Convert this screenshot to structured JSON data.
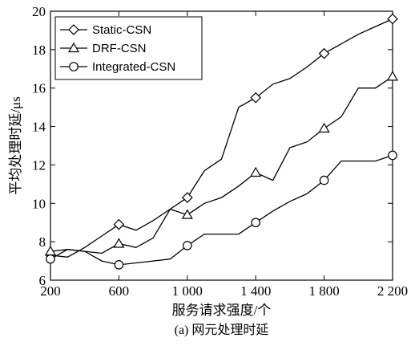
{
  "chart_data": {
    "type": "line",
    "title": "",
    "caption": "(a) 网元处理时延",
    "xlabel": "服务请求强度/个",
    "ylabel": "平均处理时延/μs",
    "xlim": [
      200,
      2200
    ],
    "ylim": [
      6,
      20
    ],
    "xticks": [
      200,
      600,
      1000,
      1400,
      1800,
      2200
    ],
    "xtick_labels": [
      "200",
      "600",
      "1 000",
      "1 400",
      "1 800",
      "2 200"
    ],
    "yticks": [
      6,
      8,
      10,
      12,
      14,
      16,
      18,
      20
    ],
    "ytick_labels": [
      "6",
      "8",
      "10",
      "12",
      "14",
      "16",
      "18",
      "20"
    ],
    "grid": false,
    "legend_position": "top-left",
    "series": [
      {
        "name": "Static-CSN",
        "marker": "diamond",
        "x": [
          200,
          300,
          400,
          500,
          600,
          700,
          800,
          900,
          1000,
          1100,
          1200,
          1300,
          1400,
          1500,
          1600,
          1700,
          1800,
          1900,
          2000,
          2100,
          2200
        ],
        "y": [
          7.3,
          7.2,
          7.7,
          8.3,
          8.9,
          8.6,
          9.1,
          9.7,
          10.3,
          11.7,
          12.3,
          15.0,
          15.5,
          16.2,
          16.5,
          17.1,
          17.8,
          18.3,
          18.8,
          19.2,
          19.6
        ],
        "marker_x": [
          200,
          600,
          1000,
          1400,
          1800,
          2200
        ],
        "marker_y": [
          7.3,
          8.9,
          10.3,
          15.5,
          17.8,
          19.6
        ]
      },
      {
        "name": "DRF-CSN",
        "marker": "triangle",
        "x": [
          200,
          300,
          400,
          500,
          600,
          700,
          800,
          900,
          1000,
          1100,
          1200,
          1300,
          1400,
          1500,
          1600,
          1700,
          1800,
          1900,
          2000,
          2100,
          2200
        ],
        "y": [
          7.5,
          7.6,
          7.5,
          7.4,
          7.9,
          7.7,
          8.2,
          9.7,
          9.4,
          10.0,
          10.3,
          10.9,
          11.6,
          11.2,
          12.9,
          13.2,
          13.9,
          14.5,
          16.0,
          16.0,
          16.6
        ],
        "marker_x": [
          200,
          600,
          1000,
          1400,
          1800,
          2200
        ],
        "marker_y": [
          7.5,
          7.9,
          9.4,
          11.6,
          13.9,
          16.6
        ]
      },
      {
        "name": "Integrated-CSN",
        "marker": "circle",
        "x": [
          200,
          300,
          400,
          500,
          600,
          700,
          800,
          900,
          1000,
          1100,
          1200,
          1300,
          1400,
          1500,
          1600,
          1700,
          1800,
          1900,
          2000,
          2100,
          2200
        ],
        "y": [
          7.1,
          7.6,
          7.5,
          7.0,
          6.8,
          6.9,
          7.0,
          7.1,
          7.8,
          8.4,
          8.4,
          8.4,
          9.0,
          9.6,
          10.1,
          10.5,
          11.2,
          12.2,
          12.2,
          12.2,
          12.5
        ],
        "marker_x": [
          200,
          600,
          1000,
          1400,
          1800,
          2200
        ],
        "marker_y": [
          7.1,
          6.8,
          7.8,
          9.0,
          11.2,
          12.5
        ]
      }
    ]
  }
}
